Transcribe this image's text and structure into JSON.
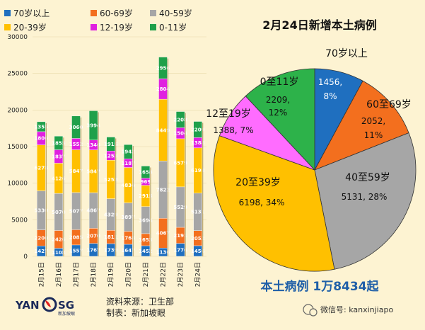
{
  "chart_data": [
    {
      "type": "bar",
      "stacked": true,
      "categories": [
        "2月15日",
        "2月16日",
        "2月17日",
        "2月18日",
        "2月19日",
        "2月20日",
        "2月21日",
        "2月22日",
        "2月23日",
        "2月24日"
      ],
      "ylim": [
        0,
        30000
      ],
      "yticks": [
        "0",
        "5000",
        "10000",
        "15000",
        "20000",
        "25000",
        "30000"
      ],
      "legend_position": "top-left",
      "series": [
        {
          "name": "70岁以上",
          "color": "#1f6fbf",
          "values": [
            1427,
            1108,
            1557,
            1767,
            1739,
            1647,
            1452,
            1136,
            1776,
            1456
          ],
          "labels": [
            "1427",
            "1108",
            "1557",
            "1767",
            "1739",
            "1647",
            "1452",
            "1136",
            "1776",
            "1456"
          ]
        },
        {
          "name": "60-69岁",
          "color": "#f36f1e",
          "values": [
            2200,
            2426,
            2085,
            2070,
            1811,
            1768,
            1653,
            4067,
            2191,
            2052
          ],
          "labels": [
            "2200",
            "2426",
            "2085",
            "2070",
            "1811",
            "1768",
            "1653",
            "4067",
            "2191",
            "2052"
          ]
        },
        {
          "name": "40-59岁",
          "color": "#a6a6a6",
          "values": [
            5330,
            5070,
            5077,
            4867,
            4329,
            3897,
            3694,
            7822,
            5529,
            5131
          ],
          "labels": [
            "5330",
            "5070",
            "5077",
            "4867",
            "4329",
            "3897",
            "3694",
            "7822",
            "5529",
            "5131"
          ]
        },
        {
          "name": "20-39岁",
          "color": "#ffc000",
          "values": [
            6278,
            4126,
            5847,
            5847,
            5258,
            4834,
            2915,
            8449,
            6579,
            6198
          ],
          "labels": [
            "6278",
            "4126",
            "5847",
            "5847",
            "5258",
            "4834",
            "2915",
            "8449",
            "6579",
            "6198"
          ]
        },
        {
          "name": "12-19岁",
          "color": "#e020e0",
          "values": [
            1806,
            1837,
            1552,
            1346,
            1253,
            1187,
            969,
            2804,
            1504,
            1388
          ],
          "labels": [
            "1806",
            "1837",
            "1552",
            "1346",
            "1253",
            "1187",
            "969",
            "2804",
            "1504",
            "1388"
          ]
        },
        {
          "name": "0-11岁",
          "color": "#1fa04a",
          "values": [
            1355,
            1855,
            3060,
            3994,
            1915,
            1942,
            1658,
            2956,
            2208,
            2209
          ],
          "labels": [
            "1355",
            "1855",
            "3060",
            "3994",
            "1915",
            "1942",
            "1658",
            "2956",
            "2208",
            "2209"
          ]
        }
      ]
    },
    {
      "type": "pie",
      "title": "2月24日新增本土病例",
      "slices": [
        {
          "name": "70岁以上",
          "value": 1456,
          "percent": "8%",
          "color": "#1f6fbf",
          "label_value": "1456,"
        },
        {
          "name": "60至69岁",
          "value": 2052,
          "percent": "11%",
          "color": "#f36f1e",
          "label_value": "2052,"
        },
        {
          "name": "40至59岁",
          "value": 5131,
          "percent": "28%",
          "color": "#a6a6a6",
          "label_value": "5131, 28%"
        },
        {
          "name": "20至39岁",
          "value": 6198,
          "percent": "34%",
          "color": "#ffc000",
          "label_value": "6198, 34%"
        },
        {
          "name": "12至19岁",
          "value": 1388,
          "percent": "7%",
          "color": "#ff6cff",
          "label_value": "1388, 7%"
        },
        {
          "name": "0至11岁",
          "value": 2209,
          "percent": "12%",
          "color": "#2db24a",
          "label_value": "2209,"
        }
      ]
    }
  ],
  "total_label": "本土病例 1万8434起",
  "source": {
    "line1": "资料来源：卫生部",
    "line2": "制表：新加坡眼"
  },
  "brand": {
    "logo_left": "YAN",
    "logo_right": "SG",
    "logo_small": "新加坡眼"
  },
  "wechat": {
    "text": "微信号: kanxinjiapo"
  }
}
